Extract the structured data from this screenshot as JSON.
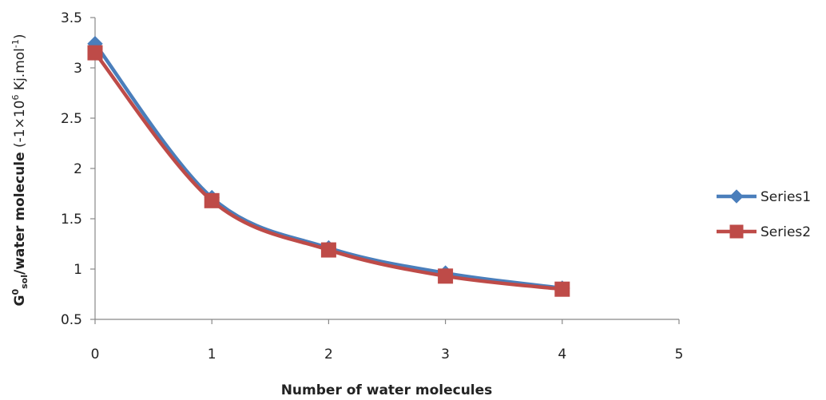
{
  "chart_data": {
    "type": "line",
    "title": "",
    "xlabel": "Number of water molecules",
    "ylabel": {
      "base": "G",
      "sup1": "0",
      "sub": "sol",
      "main": "/water molecule",
      "unit_open": " (-1×10",
      "sup2": "6",
      "unit_mid": " Kj.mol",
      "sup3": "-1",
      "unit_close": ")"
    },
    "xlim": [
      0,
      5
    ],
    "ylim": [
      0.5,
      3.5
    ],
    "xticks": [
      0,
      1,
      2,
      3,
      4,
      5
    ],
    "yticks": [
      0.5,
      1,
      1.5,
      2,
      2.5,
      3,
      3.5
    ],
    "grid": false,
    "legend_position": "right",
    "series": [
      {
        "name": "Series1",
        "color": "#4a7ebb",
        "marker": "diamond",
        "x": [
          0,
          1,
          2,
          3,
          4
        ],
        "y": [
          3.24,
          1.71,
          1.21,
          0.96,
          0.81
        ]
      },
      {
        "name": "Series2",
        "color": "#be4b48",
        "marker": "square",
        "x": [
          0,
          1,
          2,
          3,
          4
        ],
        "y": [
          3.15,
          1.68,
          1.19,
          0.93,
          0.8
        ]
      }
    ]
  }
}
